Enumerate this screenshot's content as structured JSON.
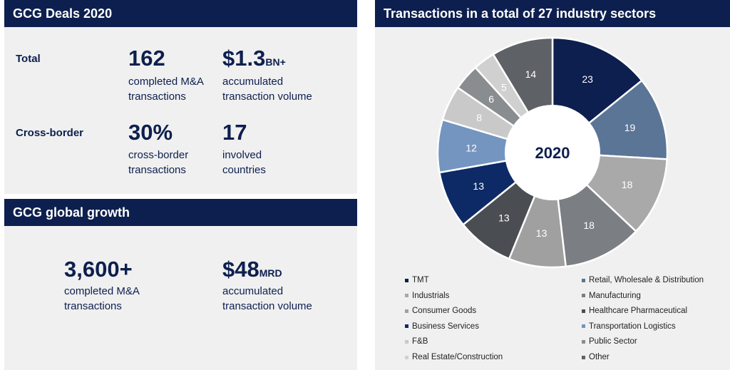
{
  "deals": {
    "title": "GCG Deals 2020",
    "total_label": "Total",
    "crossborder_label": "Cross-border",
    "stat1": {
      "value": "162",
      "suffix": "",
      "line1": "completed M&A",
      "line2": "transactions"
    },
    "stat2": {
      "value": "$1.3",
      "suffix": "BN+",
      "line1": "accumulated",
      "line2": "transaction volume"
    },
    "stat3": {
      "value": "30%",
      "suffix": "",
      "line1": "cross-border",
      "line2": "transactions"
    },
    "stat4": {
      "value": "17",
      "suffix": "",
      "line1": "involved",
      "line2": "countries"
    }
  },
  "growth": {
    "title": "GCG global growth",
    "stat1": {
      "value": "3,600+",
      "suffix": "",
      "line1": "completed M&A",
      "line2": "transactions"
    },
    "stat2": {
      "value": "$48",
      "suffix": "MRD",
      "line1": "accumulated",
      "line2": "transaction volume"
    }
  },
  "sectors": {
    "title": "Transactions in a total of 27 industry sectors",
    "center_label": "2020"
  },
  "chart_data": {
    "type": "pie",
    "title": "Transactions in a total of 27 industry sectors",
    "center_label": "2020",
    "categories": [
      "TMT",
      "Retail, Wholesale & Distribution",
      "Industrials",
      "Manufacturing",
      "Consumer Goods",
      "Healthcare Pharmaceutical",
      "Business Services",
      "Transportation Logistics",
      "F&B",
      "Public Sector",
      "Real Estate/Construction",
      "Other"
    ],
    "values": [
      23,
      19,
      18,
      18,
      13,
      13,
      13,
      12,
      8,
      6,
      5,
      14
    ],
    "colors": [
      "#0d1f4e",
      "#5a7596",
      "#a9a9a9",
      "#7b7f83",
      "#a0a0a0",
      "#4a4d51",
      "#0d2a66",
      "#7395bf",
      "#c9c9c9",
      "#8a8d90",
      "#d0d0d0",
      "#5e6165"
    ],
    "label_colors": [
      "#ffffff",
      "#ffffff",
      "#ffffff",
      "#ffffff",
      "#ffffff",
      "#ffffff",
      "#ffffff",
      "#ffffff",
      "#ffffff",
      "#ffffff",
      "#ffffff",
      "#ffffff"
    ],
    "legend": [
      {
        "label": "TMT",
        "color": "#0d1f4e"
      },
      {
        "label": "Retail, Wholesale & Distribution",
        "color": "#5a7596"
      },
      {
        "label": "Industrials",
        "color": "#a9a9a9"
      },
      {
        "label": "Manufacturing",
        "color": "#7b7f83"
      },
      {
        "label": "Consumer Goods",
        "color": "#a0a0a0"
      },
      {
        "label": "Healthcare Pharmaceutical",
        "color": "#4a4d51"
      },
      {
        "label": "Business Services",
        "color": "#0d2a66"
      },
      {
        "label": "Transportation Logistics",
        "color": "#7395bf"
      },
      {
        "label": "F&B",
        "color": "#c9c9c9"
      },
      {
        "label": "Public Sector",
        "color": "#8a8d90"
      },
      {
        "label": "Real Estate/Construction",
        "color": "#d0d0d0"
      },
      {
        "label": "Other",
        "color": "#5e6165"
      }
    ],
    "legend_placement": "bottom"
  }
}
